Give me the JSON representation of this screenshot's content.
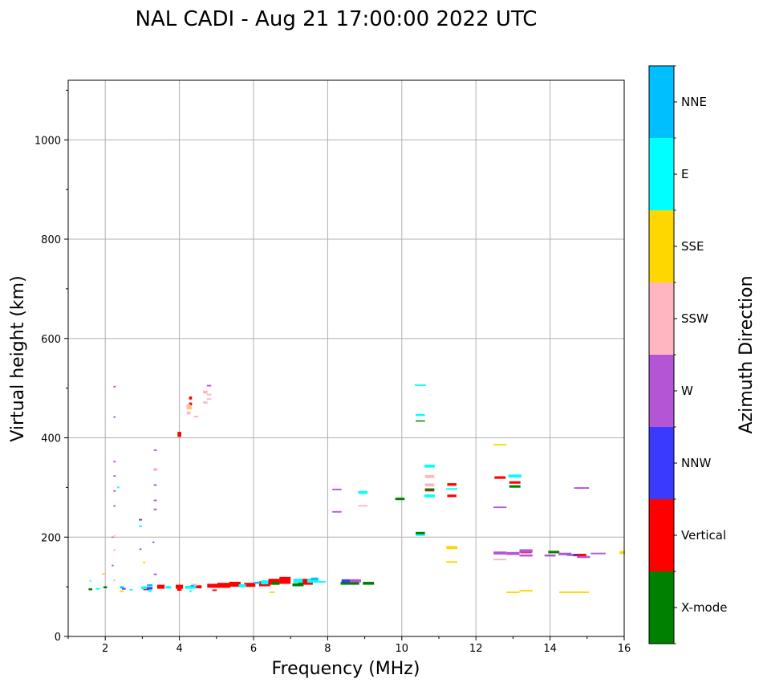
{
  "chart_data": {
    "type": "scatter",
    "title": "NAL CADI - Aug 21 17:00:00 2022 UTC",
    "xlabel": "Frequency (MHz)",
    "ylabel": "Virtual height (km)",
    "xlim": [
      1,
      16
    ],
    "ylim": [
      0,
      1120
    ],
    "xticks": [
      2,
      4,
      6,
      8,
      10,
      12,
      14,
      16
    ],
    "yticks": [
      0,
      200,
      400,
      600,
      800,
      1000
    ],
    "grid": true,
    "colorbar": {
      "title": "Azimuth Direction",
      "categories": [
        "X-mode",
        "Vertical",
        "NNW",
        "W",
        "SSW",
        "SSE",
        "E",
        "NNE"
      ],
      "colors": {
        "X-mode": "#008000",
        "Vertical": "#ff0000",
        "NNW": "#3a3aff",
        "W": "#b455d6",
        "SSW": "#ffb6c1",
        "SSE": "#ffd700",
        "E": "#00ffff",
        "NNE": "#00bfff"
      }
    },
    "series": [
      {
        "name": "Vertical",
        "points": [
          [
            4.0,
            407,
            0.1,
            10
          ],
          [
            4.3,
            480,
            0.08,
            6
          ],
          [
            4.3,
            468,
            0.08,
            6
          ],
          [
            10.75,
            295,
            0.25,
            6
          ],
          [
            11.35,
            306,
            0.25,
            5
          ],
          [
            11.35,
            283,
            0.25,
            5
          ],
          [
            12.65,
            320,
            0.3,
            5
          ],
          [
            13.05,
            310,
            0.3,
            5
          ],
          [
            13.35,
            170,
            0.3,
            5
          ],
          [
            14.8,
            164,
            0.35,
            5
          ],
          [
            3.5,
            100,
            0.2,
            8
          ],
          [
            4.0,
            100,
            0.2,
            8
          ],
          [
            4.5,
            100,
            0.2,
            6
          ],
          [
            4.9,
            102,
            0.3,
            8
          ],
          [
            5.2,
            103,
            0.35,
            10
          ],
          [
            5.5,
            105,
            0.3,
            10
          ],
          [
            5.9,
            104,
            0.3,
            8
          ],
          [
            6.3,
            106,
            0.3,
            10
          ],
          [
            6.55,
            110,
            0.3,
            12
          ],
          [
            6.85,
            113,
            0.3,
            14
          ],
          [
            7.4,
            110,
            0.4,
            12
          ],
          [
            3.1,
            96,
            0.15,
            6
          ],
          [
            4.0,
            94,
            0.12,
            4
          ],
          [
            4.95,
            93,
            0.12,
            3
          ]
        ]
      },
      {
        "name": "X-mode",
        "points": [
          [
            9.95,
            277,
            0.25,
            5
          ],
          [
            10.5,
            208,
            0.25,
            5
          ],
          [
            10.5,
            434,
            0.25,
            2
          ],
          [
            13.05,
            302,
            0.3,
            5
          ],
          [
            14.1,
            170,
            0.3,
            5
          ],
          [
            7.2,
            104,
            0.3,
            6
          ],
          [
            8.6,
            107,
            0.5,
            6
          ],
          [
            9.1,
            107,
            0.3,
            6
          ],
          [
            10.75,
            296,
            0.25,
            4
          ],
          [
            6.6,
            107,
            0.2,
            6
          ],
          [
            2.0,
            99,
            0.1,
            4
          ],
          [
            1.6,
            95,
            0.1,
            4
          ]
        ]
      },
      {
        "name": "NNW",
        "points": [
          [
            2.25,
            442,
            0.05,
            2
          ],
          [
            2.25,
            263,
            0.05,
            2
          ],
          [
            2.95,
            235,
            0.08,
            3
          ],
          [
            2.95,
            176,
            0.05,
            2
          ],
          [
            3.3,
            190,
            0.05,
            2
          ],
          [
            8.6,
            112,
            0.45,
            6
          ],
          [
            14.6,
            164,
            0.3,
            3
          ],
          [
            3.2,
            97,
            0.15,
            5
          ],
          [
            2.5,
            96,
            0.1,
            3
          ]
        ]
      },
      {
        "name": "W",
        "points": [
          [
            2.25,
            503,
            0.06,
            3
          ],
          [
            2.25,
            352,
            0.06,
            3
          ],
          [
            2.25,
            323,
            0.06,
            3
          ],
          [
            2.25,
            293,
            0.06,
            3
          ],
          [
            3.35,
            375,
            0.08,
            3
          ],
          [
            3.35,
            305,
            0.08,
            3
          ],
          [
            3.35,
            274,
            0.08,
            3
          ],
          [
            3.35,
            256,
            0.08,
            3
          ],
          [
            3.35,
            125,
            0.08,
            3
          ],
          [
            4.8,
            505,
            0.12,
            3
          ],
          [
            8.25,
            296,
            0.25,
            3
          ],
          [
            8.25,
            251,
            0.25,
            3
          ],
          [
            12.65,
            260,
            0.35,
            3
          ],
          [
            12.65,
            168,
            0.35,
            6
          ],
          [
            13.0,
            167,
            0.35,
            6
          ],
          [
            13.35,
            172,
            0.35,
            7
          ],
          [
            13.35,
            163,
            0.35,
            4
          ],
          [
            14.4,
            166,
            0.35,
            5
          ],
          [
            14.85,
            299,
            0.4,
            3
          ],
          [
            14.9,
            160,
            0.35,
            4
          ],
          [
            15.3,
            167,
            0.4,
            3
          ],
          [
            8.75,
            112,
            0.3,
            6
          ],
          [
            14.0,
            163,
            0.3,
            4
          ],
          [
            2.2,
            143,
            0.05,
            3
          ],
          [
            2.2,
            200,
            0.05,
            2
          ]
        ]
      },
      {
        "name": "SSW",
        "points": [
          [
            2.25,
            203,
            0.05,
            2
          ],
          [
            2.25,
            174,
            0.06,
            3
          ],
          [
            2.25,
            113,
            0.06,
            3
          ],
          [
            3.35,
            336,
            0.1,
            6
          ],
          [
            4.25,
            462,
            0.12,
            10
          ],
          [
            4.25,
            450,
            0.1,
            6
          ],
          [
            4.45,
            443,
            0.12,
            3
          ],
          [
            4.7,
            492,
            0.12,
            6
          ],
          [
            4.8,
            487,
            0.12,
            3
          ],
          [
            4.8,
            478,
            0.12,
            3
          ],
          [
            4.7,
            471,
            0.12,
            4
          ],
          [
            8.95,
            263,
            0.25,
            3
          ],
          [
            10.75,
            322,
            0.25,
            6
          ],
          [
            10.75,
            305,
            0.25,
            6
          ],
          [
            12.65,
            155,
            0.35,
            3
          ],
          [
            4.4,
            104,
            0.15,
            4
          ]
        ]
      },
      {
        "name": "SSE",
        "points": [
          [
            1.95,
            126,
            0.06,
            3
          ],
          [
            3.05,
            149,
            0.06,
            3
          ],
          [
            4.3,
            460,
            0.08,
            5
          ],
          [
            6.5,
            89,
            0.15,
            3
          ],
          [
            11.35,
            179,
            0.3,
            6
          ],
          [
            11.35,
            150,
            0.3,
            3
          ],
          [
            12.65,
            386,
            0.35,
            3
          ],
          [
            13.0,
            89,
            0.35,
            3
          ],
          [
            13.35,
            92,
            0.35,
            3
          ],
          [
            14.65,
            89,
            0.8,
            3
          ],
          [
            15.95,
            169,
            0.15,
            6
          ],
          [
            2.45,
            91,
            0.1,
            3
          ]
        ]
      },
      {
        "name": "E",
        "points": [
          [
            2.35,
            300,
            0.06,
            3
          ],
          [
            2.95,
            222,
            0.08,
            3
          ],
          [
            3.05,
            98,
            0.15,
            6
          ],
          [
            3.2,
            92,
            0.1,
            4
          ],
          [
            3.7,
            99,
            0.15,
            5
          ],
          [
            4.3,
            99,
            0.3,
            6
          ],
          [
            4.3,
            91,
            0.06,
            3
          ],
          [
            5.7,
            102,
            0.2,
            6
          ],
          [
            6.3,
            109,
            0.2,
            8
          ],
          [
            7.2,
            112,
            0.25,
            8
          ],
          [
            7.6,
            112,
            0.3,
            8
          ],
          [
            7.85,
            110,
            0.2,
            3
          ],
          [
            8.95,
            290,
            0.25,
            6
          ],
          [
            10.5,
            506,
            0.3,
            3
          ],
          [
            10.5,
            446,
            0.25,
            4
          ],
          [
            10.75,
            343,
            0.28,
            6
          ],
          [
            10.75,
            283,
            0.28,
            6
          ],
          [
            11.35,
            297,
            0.3,
            3
          ],
          [
            13.05,
            323,
            0.35,
            6
          ],
          [
            10.5,
            204,
            0.25,
            3
          ],
          [
            2.7,
            94,
            0.08,
            3
          ],
          [
            1.8,
            96,
            0.1,
            3
          ],
          [
            1.6,
            112,
            0.04,
            3
          ]
        ]
      },
      {
        "name": "NNE",
        "points": [
          [
            2.45,
            99,
            0.1,
            4
          ],
          [
            3.2,
            103,
            0.15,
            4
          ],
          [
            7.65,
            116,
            0.2,
            5
          ],
          [
            6.1,
            108,
            0.15,
            4
          ],
          [
            4.35,
            102,
            0.1,
            3
          ]
        ]
      }
    ]
  }
}
